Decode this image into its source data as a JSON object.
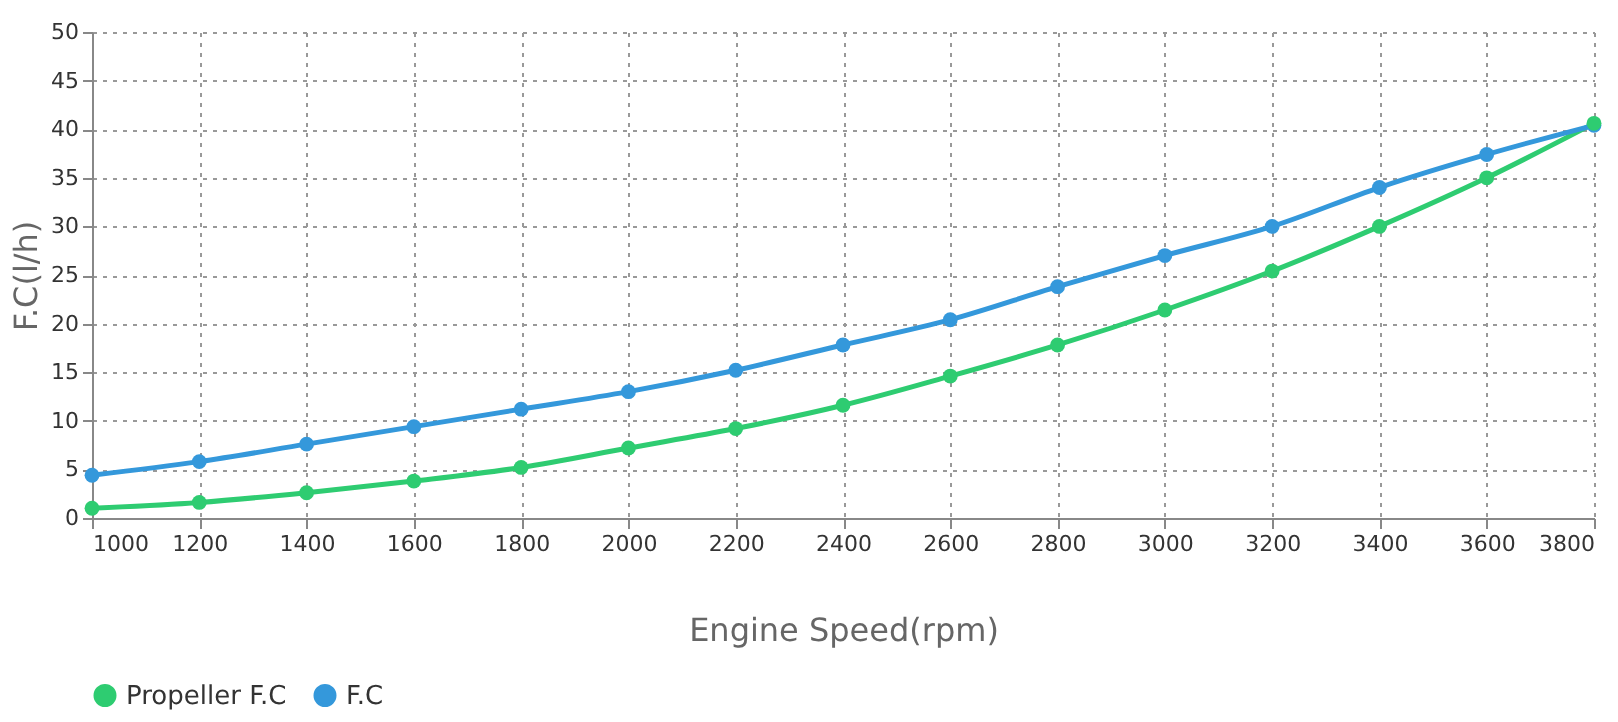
{
  "chart_data": {
    "type": "line",
    "xlabel": "Engine Speed(rpm)",
    "ylabel": "F.C(l/h)",
    "x": [
      1000,
      1200,
      1400,
      1600,
      1800,
      2000,
      2200,
      2400,
      2600,
      2800,
      3000,
      3200,
      3400,
      3600,
      3800
    ],
    "series": [
      {
        "name": "Propeller F.C",
        "color": "#2ecc71",
        "values": [
          1,
          1.6,
          2.6,
          3.8,
          5.2,
          7.2,
          9.2,
          11.6,
          14.6,
          17.8,
          21.4,
          25.4,
          30,
          35,
          40.6
        ]
      },
      {
        "name": "F.C",
        "color": "#3498db",
        "values": [
          4.4,
          5.8,
          7.6,
          9.4,
          11.2,
          13,
          15.2,
          17.8,
          20.4,
          23.8,
          27,
          30,
          34,
          37.4,
          40.4
        ]
      }
    ],
    "xlim": [
      1000,
      3800
    ],
    "xticks": [
      1000,
      1200,
      1400,
      1600,
      1800,
      2000,
      2200,
      2400,
      2600,
      2800,
      3000,
      3200,
      3400,
      3600,
      3800
    ],
    "ylim": [
      0,
      50
    ],
    "yticks": [
      0,
      5,
      10,
      15,
      20,
      25,
      30,
      35,
      40,
      45,
      50
    ],
    "grid": true,
    "legend": "bottom",
    "marker": "circle",
    "line_style": "solid"
  }
}
